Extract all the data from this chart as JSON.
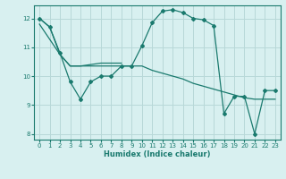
{
  "xlabel": "Humidex (Indice chaleur)",
  "background_color": "#d8f0f0",
  "grid_color": "#b8d8d8",
  "line_color": "#1a7a6e",
  "xlim": [
    -0.5,
    23.5
  ],
  "ylim": [
    7.8,
    12.45
  ],
  "xticks": [
    0,
    1,
    2,
    3,
    4,
    5,
    6,
    7,
    8,
    9,
    10,
    11,
    12,
    13,
    14,
    15,
    16,
    17,
    18,
    19,
    20,
    21,
    22,
    23
  ],
  "yticks": [
    8,
    9,
    10,
    11,
    12
  ],
  "line1_x": [
    0,
    1,
    2,
    3,
    4,
    5,
    6,
    7,
    8,
    9,
    10,
    11,
    12,
    13,
    14,
    15,
    16,
    17,
    18,
    19,
    20,
    21,
    22,
    23
  ],
  "line1_y": [
    12.0,
    11.7,
    10.8,
    9.8,
    9.2,
    9.8,
    10.0,
    10.0,
    10.35,
    10.35,
    11.05,
    11.85,
    12.25,
    12.3,
    12.2,
    12.0,
    11.95,
    11.75,
    8.7,
    9.3,
    9.3,
    8.0,
    9.5,
    9.5
  ],
  "line2_x": [
    0,
    2,
    3,
    4,
    5,
    6,
    7,
    8,
    9,
    10,
    11,
    12,
    13,
    14,
    15,
    16,
    17,
    18,
    19,
    20,
    21,
    22,
    23
  ],
  "line2_y": [
    11.8,
    10.75,
    10.35,
    10.35,
    10.35,
    10.35,
    10.35,
    10.35,
    10.35,
    10.35,
    10.2,
    10.1,
    10.0,
    9.9,
    9.75,
    9.65,
    9.55,
    9.45,
    9.35,
    9.25,
    9.2,
    9.2,
    9.2
  ],
  "line3_x": [
    0,
    1,
    2,
    3,
    4,
    5,
    6,
    7,
    8
  ],
  "line3_y": [
    12.0,
    11.7,
    10.75,
    10.35,
    10.35,
    10.4,
    10.45,
    10.45,
    10.45
  ]
}
